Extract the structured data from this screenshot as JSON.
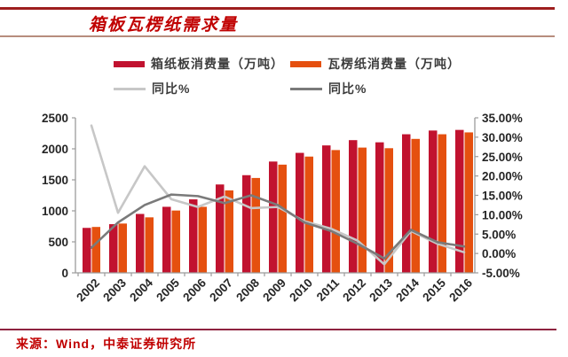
{
  "header": {
    "title": "箱板瓦楞纸需求量"
  },
  "legend": [
    {
      "label": "箱纸板消费量（万吨）",
      "type": "bar",
      "color": "#c1122f"
    },
    {
      "label": "瓦楞纸消费量（万吨）",
      "type": "bar",
      "color": "#e5500f"
    },
    {
      "label": "同比%",
      "type": "line",
      "color": "#c7c7c7"
    },
    {
      "label": "同比%",
      "type": "line",
      "color": "#7a7a7a"
    }
  ],
  "chart_data": {
    "type": "bar",
    "subtype": "grouped bars with two YoY percent lines",
    "categories": [
      "2002",
      "2003",
      "2004",
      "2005",
      "2006",
      "2007",
      "2008",
      "2009",
      "2010",
      "2011",
      "2012",
      "2013",
      "2014",
      "2015",
      "2016"
    ],
    "series": [
      {
        "name": "箱纸板消费量（万吨）",
        "type": "bar",
        "axis": "left",
        "color": "#c1122f",
        "values": [
          725,
          785,
          950,
          1065,
          1185,
          1425,
          1575,
          1795,
          1935,
          2055,
          2140,
          2105,
          2235,
          2295,
          2305
        ]
      },
      {
        "name": "瓦楞纸消费量（万吨）",
        "type": "bar",
        "axis": "left",
        "color": "#e5500f",
        "values": [
          740,
          795,
          895,
          1005,
          1065,
          1330,
          1530,
          1745,
          1875,
          1980,
          2020,
          2010,
          2160,
          2235,
          2265
        ]
      },
      {
        "name": "同比%",
        "type": "line",
        "axis": "right",
        "color": "#c7c7c7",
        "values": [
          33.0,
          10.5,
          22.5,
          14.0,
          12.0,
          14.7,
          11.7,
          12.0,
          8.3,
          6.4,
          3.3,
          -2.8,
          5.8,
          2.5,
          0.3
        ]
      },
      {
        "name": "同比%",
        "type": "line",
        "axis": "right",
        "color": "#7a7a7a",
        "values": [
          1.5,
          8.0,
          12.5,
          15.2,
          14.8,
          13.0,
          15.0,
          12.5,
          8.0,
          5.8,
          2.5,
          -1.3,
          6.1,
          2.9,
          1.8
        ]
      }
    ],
    "left_axis": {
      "min": 0,
      "max": 2500,
      "step": 500,
      "tick_labels": [
        "2500",
        "2000",
        "1500",
        "1000",
        "500",
        "0"
      ]
    },
    "right_axis": {
      "min": -5,
      "max": 35,
      "step": 5,
      "tick_labels": [
        "35.00%",
        "30.00%",
        "25.00%",
        "20.00%",
        "15.00%",
        "10.00%",
        "5.00%",
        "0.00%",
        "-5.00%"
      ]
    },
    "grid": false,
    "legend_position": "top"
  },
  "colors": {
    "title_red": "#c00000",
    "header_rule_dark": "#9e1e1e",
    "header_rule_light": "#b78d7d",
    "footer_rule": "#8e2340",
    "axis_line": "#9b9b9b",
    "tick_text": "#262626"
  },
  "source": {
    "text": "来源：Wind，中泰证券研究所"
  }
}
